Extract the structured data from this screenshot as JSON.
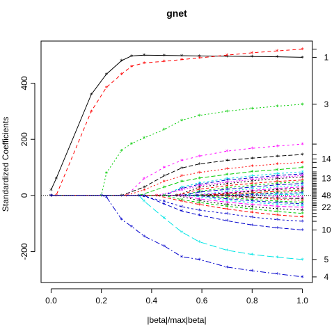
{
  "chart_data": {
    "type": "line",
    "title": "gnet",
    "xlabel": "|beta|/max|beta|",
    "ylabel": "Standardized Coefficients",
    "xlim": [
      -0.04,
      1.04
    ],
    "ylim": [
      -310,
      550
    ],
    "x_ticks": [
      0.0,
      0.2,
      0.4,
      0.6,
      0.8,
      1.0
    ],
    "x_tick_labels": [
      "0.0",
      "0.2",
      "0.4",
      "0.6",
      "0.8",
      "1.0"
    ],
    "y_ticks": [
      -200,
      0,
      200,
      400
    ],
    "y_tick_labels": [
      "-200",
      "0",
      "200",
      "400"
    ],
    "right_axis_labels": [
      {
        "label": "1",
        "y": 492
      },
      {
        "label": "3",
        "y": 325
      },
      {
        "label": "14",
        "y": 130
      },
      {
        "label": "13",
        "y": 60
      },
      {
        "label": "48",
        "y": 0
      },
      {
        "label": "22",
        "y": -42
      },
      {
        "label": "10",
        "y": -123
      },
      {
        "label": "5",
        "y": -228
      },
      {
        "label": "4",
        "y": -290
      }
    ],
    "right_axis_extra_ticks": [
      521,
      183,
      146,
      118,
      100,
      84,
      77,
      71,
      66,
      55,
      49,
      43,
      37,
      31,
      26,
      20,
      15,
      10,
      5,
      -5,
      -11,
      -17,
      -24,
      -30,
      -36,
      -52,
      -64,
      -76,
      -92
    ],
    "series": [
      {
        "color": "#000000",
        "dash": "0",
        "x": [
          0.0,
          0.02,
          0.16,
          0.22,
          0.28,
          0.32,
          0.37,
          0.45,
          0.52,
          0.59,
          0.7,
          0.8,
          0.9,
          1.0
        ],
        "values": [
          20,
          60,
          360,
          432,
          480,
          497,
          500,
          499,
          498,
          497,
          496,
          495,
          494,
          492
        ]
      },
      {
        "color": "#ff0000",
        "dash": "5,4",
        "x": [
          0.0,
          0.02,
          0.16,
          0.22,
          0.28,
          0.32,
          0.37,
          0.45,
          0.52,
          0.59,
          0.7,
          0.8,
          0.9,
          1.0
        ],
        "values": [
          0,
          0,
          300,
          385,
          432,
          460,
          472,
          478,
          484,
          490,
          500,
          508,
          515,
          521
        ]
      },
      {
        "color": "#00cc00",
        "dash": "2,3",
        "x": [
          0.0,
          0.2,
          0.22,
          0.28,
          0.32,
          0.37,
          0.45,
          0.52,
          0.59,
          0.7,
          0.8,
          0.9,
          1.0
        ],
        "values": [
          0,
          0,
          80,
          160,
          185,
          205,
          235,
          268,
          285,
          300,
          310,
          318,
          325
        ]
      },
      {
        "color": "#0000cc",
        "dash": "8,3,2,3",
        "x": [
          0.0,
          0.2,
          0.22,
          0.28,
          0.32,
          0.37,
          0.45,
          0.52,
          0.59,
          0.7,
          0.8,
          0.9,
          1.0
        ],
        "values": [
          0,
          0,
          -5,
          -85,
          -110,
          -145,
          -180,
          -218,
          -228,
          -255,
          -268,
          -279,
          -290
        ]
      },
      {
        "color": "#00e5e5",
        "dash": "10,4",
        "x": [
          0.0,
          0.35,
          0.37,
          0.45,
          0.52,
          0.59,
          0.7,
          0.8,
          0.9,
          1.0
        ],
        "values": [
          0,
          0,
          -20,
          -80,
          -130,
          -165,
          -195,
          -210,
          -220,
          -228
        ]
      },
      {
        "color": "#ff00ff",
        "dash": "3,4",
        "x": [
          0.0,
          0.3,
          0.37,
          0.45,
          0.52,
          0.59,
          0.7,
          0.8,
          0.9,
          1.0
        ],
        "values": [
          0,
          0,
          60,
          100,
          125,
          140,
          158,
          168,
          176,
          183
        ]
      },
      {
        "color": "#000000",
        "dash": "6,3",
        "x": [
          0.0,
          0.28,
          0.37,
          0.45,
          0.52,
          0.59,
          0.7,
          0.8,
          0.9,
          1.0
        ],
        "values": [
          0,
          0,
          30,
          70,
          98,
          112,
          125,
          133,
          140,
          146
        ]
      },
      {
        "color": "#ff0000",
        "dash": "2,3",
        "x": [
          0.0,
          0.3,
          0.37,
          0.45,
          0.52,
          0.59,
          0.7,
          0.8,
          0.9,
          1.0
        ],
        "values": [
          0,
          0,
          20,
          50,
          70,
          82,
          95,
          105,
          112,
          118
        ]
      },
      {
        "color": "#00cc00",
        "dash": "6,3",
        "x": [
          0.0,
          0.35,
          0.45,
          0.52,
          0.59,
          0.7,
          0.8,
          0.9,
          1.0
        ],
        "values": [
          0,
          0,
          30,
          50,
          62,
          75,
          85,
          92,
          100
        ]
      },
      {
        "color": "#00e5e5",
        "dash": "3,3",
        "x": [
          0.0,
          0.45,
          0.52,
          0.59,
          0.7,
          0.8,
          0.9,
          1.0
        ],
        "values": [
          0,
          0,
          30,
          45,
          60,
          70,
          78,
          84
        ]
      },
      {
        "color": "#0000cc",
        "dash": "5,3",
        "x": [
          0.0,
          0.45,
          0.52,
          0.59,
          0.7,
          0.8,
          0.9,
          1.0
        ],
        "values": [
          0,
          0,
          25,
          40,
          55,
          63,
          71,
          77
        ]
      },
      {
        "color": "#ff00ff",
        "dash": "2,2",
        "x": [
          0.0,
          0.42,
          0.52,
          0.59,
          0.7,
          0.8,
          0.9,
          1.0
        ],
        "values": [
          0,
          0,
          20,
          35,
          48,
          57,
          65,
          71
        ]
      },
      {
        "color": "#000000",
        "dash": "2,3",
        "x": [
          0.0,
          0.5,
          0.59,
          0.7,
          0.8,
          0.9,
          1.0
        ],
        "values": [
          0,
          0,
          30,
          42,
          52,
          60,
          66
        ]
      },
      {
        "color": "#ff0000",
        "dash": "4,3",
        "x": [
          0.0,
          0.5,
          0.59,
          0.7,
          0.8,
          0.9,
          1.0
        ],
        "values": [
          0,
          0,
          22,
          35,
          43,
          50,
          55
        ]
      },
      {
        "color": "#00cc00",
        "dash": "3,3",
        "x": [
          0.0,
          0.52,
          0.59,
          0.7,
          0.8,
          0.9,
          1.0
        ],
        "values": [
          0,
          0,
          15,
          28,
          36,
          44,
          49
        ]
      },
      {
        "color": "#0000cc",
        "dash": "6,3",
        "x": [
          0.0,
          0.52,
          0.59,
          0.7,
          0.8,
          0.9,
          1.0
        ],
        "values": [
          0,
          0,
          12,
          22,
          30,
          38,
          43
        ]
      },
      {
        "color": "#00e5e5",
        "dash": "2,3",
        "x": [
          0.0,
          0.55,
          0.7,
          0.8,
          0.9,
          1.0
        ],
        "values": [
          0,
          0,
          15,
          24,
          31,
          37
        ]
      },
      {
        "color": "#ff00ff",
        "dash": "5,3",
        "x": [
          0.0,
          0.55,
          0.7,
          0.8,
          0.9,
          1.0
        ],
        "values": [
          0,
          0,
          10,
          18,
          25,
          31
        ]
      },
      {
        "color": "#000000",
        "dash": "3,3",
        "x": [
          0.0,
          0.58,
          0.7,
          0.8,
          0.9,
          1.0
        ],
        "values": [
          0,
          0,
          8,
          15,
          21,
          26
        ]
      },
      {
        "color": "#ff0000",
        "dash": "6,3",
        "x": [
          0.0,
          0.6,
          0.7,
          0.8,
          0.9,
          1.0
        ],
        "values": [
          0,
          0,
          5,
          10,
          15,
          20
        ]
      },
      {
        "color": "#00cc00",
        "dash": "2,3",
        "x": [
          0.0,
          0.62,
          0.8,
          0.9,
          1.0
        ],
        "values": [
          0,
          0,
          6,
          11,
          15
        ]
      },
      {
        "color": "#0000cc",
        "dash": "4,3",
        "x": [
          0.0,
          0.7,
          0.8,
          0.9,
          1.0
        ],
        "values": [
          0,
          0,
          4,
          7,
          10
        ]
      },
      {
        "color": "#00e5e5",
        "dash": "5,3",
        "x": [
          0.0,
          0.75,
          0.9,
          1.0
        ],
        "values": [
          0,
          0,
          3,
          5
        ]
      },
      {
        "color": "#ff00ff",
        "dash": "3,3",
        "x": [
          0.0,
          0.75,
          0.9,
          1.0
        ],
        "values": [
          0,
          0,
          -3,
          -5
        ]
      },
      {
        "color": "#000000",
        "dash": "6,3",
        "x": [
          0.0,
          0.7,
          0.8,
          0.9,
          1.0
        ],
        "values": [
          0,
          0,
          -6,
          -9,
          -11
        ]
      },
      {
        "color": "#ff0000",
        "dash": "2,3",
        "x": [
          0.0,
          0.65,
          0.8,
          0.9,
          1.0
        ],
        "values": [
          0,
          0,
          -9,
          -13,
          -17
        ]
      },
      {
        "color": "#00cc00",
        "dash": "4,3",
        "x": [
          0.0,
          0.6,
          0.7,
          0.8,
          0.9,
          1.0
        ],
        "values": [
          0,
          0,
          -8,
          -14,
          -20,
          -24
        ]
      },
      {
        "color": "#0000cc",
        "dash": "5,3",
        "x": [
          0.0,
          0.58,
          0.7,
          0.8,
          0.9,
          1.0
        ],
        "values": [
          0,
          0,
          -12,
          -19,
          -25,
          -30
        ]
      },
      {
        "color": "#00e5e5",
        "dash": "3,3",
        "x": [
          0.0,
          0.55,
          0.7,
          0.8,
          0.9,
          1.0
        ],
        "values": [
          0,
          0,
          -18,
          -25,
          -31,
          -36
        ]
      },
      {
        "color": "#ff00ff",
        "dash": "6,3",
        "x": [
          0.0,
          0.52,
          0.59,
          0.7,
          0.8,
          0.9,
          1.0
        ],
        "values": [
          0,
          0,
          -12,
          -24,
          -32,
          -38,
          -42
        ]
      },
      {
        "color": "#000000",
        "dash": "2,3",
        "x": [
          0.0,
          0.5,
          0.59,
          0.7,
          0.8,
          0.9,
          1.0
        ],
        "values": [
          0,
          0,
          -18,
          -32,
          -40,
          -47,
          -52
        ]
      },
      {
        "color": "#00cc00",
        "dash": "4,3",
        "x": [
          0.0,
          0.45,
          0.52,
          0.59,
          0.7,
          0.8,
          0.9,
          1.0
        ],
        "values": [
          0,
          0,
          -15,
          -25,
          -38,
          -48,
          -57,
          -64
        ]
      },
      {
        "color": "#ff0000",
        "dash": "5,3",
        "x": [
          0.0,
          0.42,
          0.52,
          0.59,
          0.7,
          0.8,
          0.9,
          1.0
        ],
        "values": [
          0,
          0,
          -20,
          -32,
          -48,
          -60,
          -69,
          -76
        ]
      },
      {
        "color": "#0000cc",
        "dash": "3,3",
        "x": [
          0.0,
          0.35,
          0.45,
          0.52,
          0.59,
          0.7,
          0.8,
          0.9,
          1.0
        ],
        "values": [
          0,
          0,
          -20,
          -40,
          -52,
          -65,
          -77,
          -86,
          -92
        ]
      },
      {
        "color": "#0000cc",
        "dash": "6,3",
        "x": [
          0.0,
          0.37,
          0.45,
          0.52,
          0.59,
          0.7,
          0.8,
          0.9,
          1.0
        ],
        "values": [
          0,
          0,
          -30,
          -55,
          -70,
          -90,
          -105,
          -115,
          -123
        ]
      }
    ]
  }
}
